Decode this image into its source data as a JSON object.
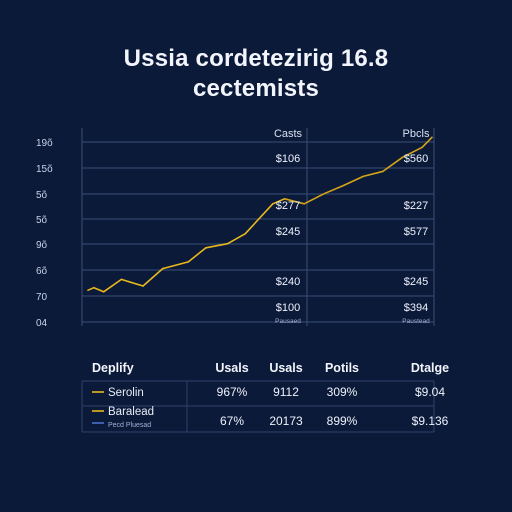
{
  "title": {
    "line1": "Ussia cordetezirig 16.8",
    "line2": "cectemists"
  },
  "chart_data": {
    "type": "line",
    "y_tick_labels": [
      "19õ",
      "15õ",
      "5õ",
      "5õ",
      "9õ",
      "6õ",
      "70",
      "04"
    ],
    "series": [
      {
        "color": "#e8b91c",
        "points": [
          [
            0,
            72
          ],
          [
            3,
            75
          ],
          [
            8,
            70
          ],
          [
            17,
            85
          ],
          [
            28,
            77
          ],
          [
            38,
            98
          ],
          [
            51,
            106
          ],
          [
            60,
            123
          ],
          [
            71,
            128
          ],
          [
            80,
            140
          ],
          [
            94,
            176
          ],
          [
            100,
            182
          ]
        ]
      },
      {
        "color": "#d4a418",
        "points": [
          [
            100,
            182
          ],
          [
            110,
            176
          ],
          [
            120,
            188
          ],
          [
            130,
            198
          ],
          [
            140,
            209
          ],
          [
            150,
            215
          ],
          [
            160,
            232
          ],
          [
            170,
            244
          ],
          [
            175,
            256
          ]
        ]
      }
    ],
    "panels": [
      {
        "header": "Casts",
        "values": [
          "$106",
          "$277",
          "$245",
          "$240",
          "$100"
        ],
        "foot": "Pausaed"
      },
      {
        "header": "Pbcls",
        "values": [
          "$560",
          "$227",
          "$577",
          "$245",
          "$394"
        ],
        "foot": "Paustead"
      }
    ]
  },
  "table": {
    "headers": [
      "Deplify",
      "Usals",
      "Usals",
      "Potils",
      "Dtalge"
    ],
    "rows": [
      {
        "label": "Serolin",
        "color": "#e8b91c",
        "cells": [
          "967%",
          "9112",
          "309%",
          "$9.04"
        ]
      },
      {
        "label": "Baralead",
        "color": "#e8b91c",
        "cells": [
          "67%",
          "20173",
          "899%",
          "$9.136"
        ]
      },
      {
        "label": "Pecd Pluesad",
        "color": "#4a6fd0",
        "cells": []
      }
    ]
  }
}
